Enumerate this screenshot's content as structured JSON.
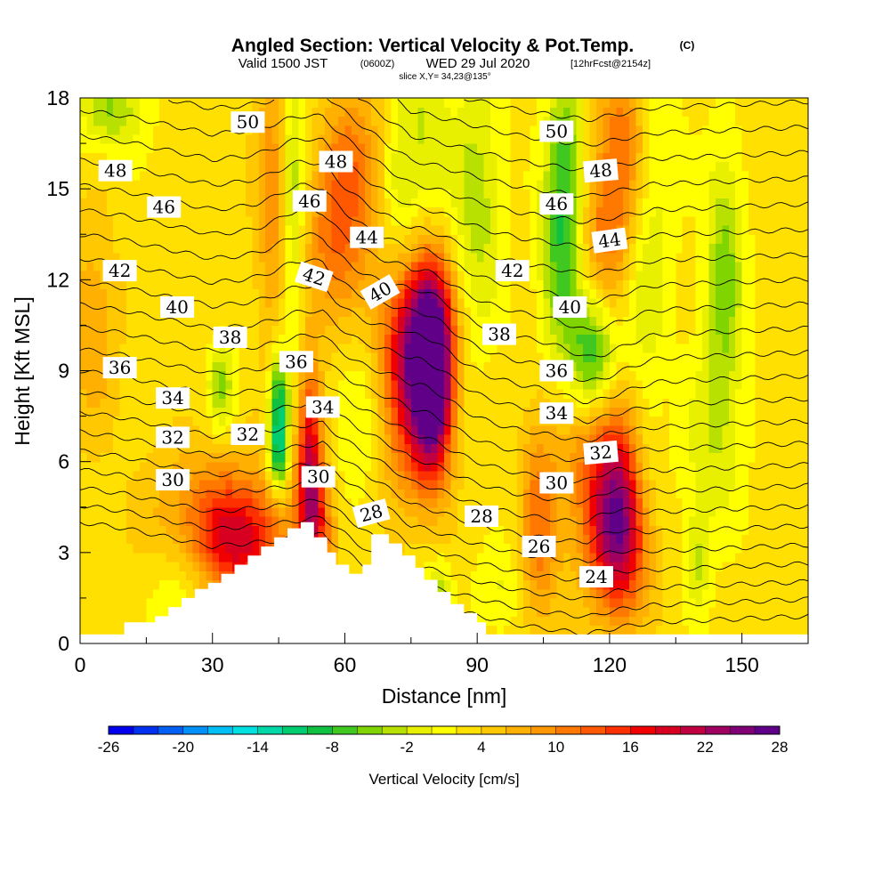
{
  "title": {
    "main": "Angled Section: Vertical Velocity & Pot.Temp.",
    "main_suffix": "(C)",
    "valid_prefix": "Valid 1500 JST",
    "valid_zulu": "(0600Z)",
    "valid_date": "WED 29 Jul 2020",
    "forecast": "[12hrFcst@2154z]",
    "slice": "slice X,Y= 34,23@135°"
  },
  "chart_data": {
    "type": "heatmap",
    "xlabel": "Distance [nm]",
    "ylabel": "Height [Kft MSL]",
    "xlim": [
      0,
      165
    ],
    "ylim": [
      0,
      18
    ],
    "x_ticks": [
      0,
      30,
      60,
      90,
      120,
      150
    ],
    "y_ticks": [
      0,
      3,
      6,
      9,
      12,
      15,
      18
    ],
    "x_tick_labels": [
      "0",
      "30",
      "60",
      "90",
      "120",
      "150"
    ],
    "y_tick_labels": [
      "0",
      "3",
      "6",
      "9",
      "12",
      "15",
      "18"
    ],
    "colorbar": {
      "label": "Vertical Velocity [cm/s]",
      "min": -26,
      "max": 28,
      "step": 2,
      "tick_values": [
        -26,
        -20,
        -14,
        -8,
        -2,
        4,
        10,
        16,
        22,
        28
      ],
      "tick_labels": [
        "-26",
        "-20",
        "-14",
        "-8",
        "-2",
        "4",
        "10",
        "16",
        "22",
        "28"
      ],
      "colors": [
        "#0000ee",
        "#0030f0",
        "#0060f4",
        "#0090f8",
        "#00bff5",
        "#00e0e0",
        "#00d8a8",
        "#00cc70",
        "#10c040",
        "#40c820",
        "#80d400",
        "#b8e000",
        "#e8f000",
        "#ffff00",
        "#ffe000",
        "#ffc800",
        "#ffb000",
        "#ff9800",
        "#ff7800",
        "#ff5800",
        "#ff3000",
        "#f00000",
        "#d80020",
        "#c00040",
        "#a00060",
        "#800078",
        "#600088"
      ]
    },
    "terrain": [
      [
        10,
        0.7
      ],
      [
        17,
        0.7
      ],
      [
        17,
        0.9
      ],
      [
        20,
        0.9
      ],
      [
        20,
        1.2
      ],
      [
        23,
        1.2
      ],
      [
        23,
        1.5
      ],
      [
        26,
        1.5
      ],
      [
        26,
        1.8
      ],
      [
        29,
        1.8
      ],
      [
        29,
        2.0
      ],
      [
        32,
        2.0
      ],
      [
        32,
        2.3
      ],
      [
        35,
        2.3
      ],
      [
        35,
        2.6
      ],
      [
        38,
        2.6
      ],
      [
        38,
        2.9
      ],
      [
        41,
        2.9
      ],
      [
        41,
        3.2
      ],
      [
        44,
        3.2
      ],
      [
        44,
        3.5
      ],
      [
        47,
        3.5
      ],
      [
        47,
        3.8
      ],
      [
        50,
        3.8
      ],
      [
        50,
        4.0
      ],
      [
        53,
        4.0
      ],
      [
        53,
        3.5
      ],
      [
        56,
        3.5
      ],
      [
        56,
        3.0
      ],
      [
        58,
        3.0
      ],
      [
        58,
        2.6
      ],
      [
        61,
        2.6
      ],
      [
        61,
        2.3
      ],
      [
        64,
        2.3
      ],
      [
        64,
        2.6
      ],
      [
        66,
        2.6
      ],
      [
        66,
        3.6
      ],
      [
        70,
        3.6
      ],
      [
        70,
        3.3
      ],
      [
        73,
        3.3
      ],
      [
        73,
        2.9
      ],
      [
        76,
        2.9
      ],
      [
        76,
        2.5
      ],
      [
        78,
        2.5
      ],
      [
        78,
        2.1
      ],
      [
        81,
        2.1
      ],
      [
        81,
        1.7
      ],
      [
        84,
        1.7
      ],
      [
        84,
        1.3
      ],
      [
        87,
        1.3
      ],
      [
        87,
        1.0
      ],
      [
        90,
        1.0
      ],
      [
        90,
        0.7
      ],
      [
        92,
        0.7
      ]
    ],
    "terrain_baseline_height": 0.3,
    "vv_features": [
      {
        "x": 80,
        "y": 8.8,
        "sx": 3,
        "sy": 2.2,
        "amp": 30
      },
      {
        "x": 76,
        "y": 10.3,
        "sx": 5,
        "sy": 2.0,
        "amp": 15
      },
      {
        "x": 74,
        "y": 8.0,
        "sx": 4,
        "sy": 2.5,
        "amp": 9
      },
      {
        "x": 52,
        "y": 6.0,
        "sx": 2,
        "sy": 2.2,
        "amp": 17
      },
      {
        "x": 54,
        "y": 3.8,
        "sx": 3,
        "sy": 1.4,
        "amp": 9
      },
      {
        "x": 37,
        "y": 3.3,
        "sx": 7,
        "sy": 1.4,
        "amp": 14
      },
      {
        "x": 28,
        "y": 4.5,
        "sx": 9,
        "sy": 1.5,
        "amp": 6
      },
      {
        "x": 122,
        "y": 4.4,
        "sx": 4,
        "sy": 2.2,
        "amp": 15
      },
      {
        "x": 117,
        "y": 5.7,
        "sx": 6,
        "sy": 2.5,
        "amp": 8
      },
      {
        "x": 104,
        "y": 4.0,
        "sx": 3,
        "sy": 2.5,
        "amp": 8
      },
      {
        "x": 123,
        "y": 3.0,
        "sx": 5,
        "sy": 1.5,
        "amp": 6
      },
      {
        "x": 123,
        "y": 16.5,
        "sx": 4,
        "sy": 2.0,
        "amp": 9
      },
      {
        "x": 119,
        "y": 13.2,
        "sx": 4,
        "sy": 2.0,
        "amp": 7
      },
      {
        "x": 58,
        "y": 13.0,
        "sx": 5,
        "sy": 2.0,
        "amp": 8
      },
      {
        "x": 62,
        "y": 16.0,
        "sx": 5,
        "sy": 2.0,
        "amp": 7
      },
      {
        "x": 44,
        "y": 14.8,
        "sx": 3,
        "sy": 3.5,
        "amp": 7
      },
      {
        "x": 3,
        "y": 10.5,
        "sx": 4,
        "sy": 2.5,
        "amp": 5
      },
      {
        "x": 116,
        "y": 9.5,
        "sx": 4,
        "sy": 1.5,
        "amp": -13
      },
      {
        "x": 110,
        "y": 15.5,
        "sx": 3,
        "sy": 2.5,
        "amp": -10
      },
      {
        "x": 108,
        "y": 12.0,
        "sx": 3,
        "sy": 2.0,
        "amp": -6
      },
      {
        "x": 48,
        "y": 14.5,
        "sx": 2,
        "sy": 3.5,
        "amp": -8
      },
      {
        "x": 45,
        "y": 7.8,
        "sx": 1.5,
        "sy": 1.2,
        "amp": -14
      },
      {
        "x": 45,
        "y": 6.0,
        "sx": 1.5,
        "sy": 0.8,
        "amp": -10
      },
      {
        "x": 7,
        "y": 17.7,
        "sx": 5,
        "sy": 1.0,
        "amp": -7
      },
      {
        "x": 32,
        "y": 8.5,
        "sx": 2,
        "sy": 1.0,
        "amp": -7
      },
      {
        "x": 72,
        "y": 14.0,
        "sx": 3,
        "sy": 3.0,
        "amp": -4
      },
      {
        "x": 90,
        "y": 14.5,
        "sx": 4,
        "sy": 3.0,
        "amp": -6
      },
      {
        "x": 78,
        "y": 16.5,
        "sx": 4,
        "sy": 2.5,
        "amp": -5
      },
      {
        "x": 146,
        "y": 12.0,
        "sx": 3,
        "sy": 3.0,
        "amp": -8
      },
      {
        "x": 130,
        "y": 16.0,
        "sx": 4,
        "sy": 2.0,
        "amp": -4
      },
      {
        "x": 143,
        "y": 6.5,
        "sx": 5,
        "sy": 2.0,
        "amp": -4
      },
      {
        "x": 128,
        "y": 6.5,
        "sx": 3,
        "sy": 2.0,
        "amp": -3
      },
      {
        "x": 128,
        "y": 11.5,
        "sx": 4,
        "sy": 2.0,
        "amp": -4
      },
      {
        "x": 95,
        "y": 1.7,
        "sx": 4,
        "sy": 1.0,
        "amp": -3
      },
      {
        "x": 81,
        "y": 1.8,
        "sx": 2,
        "sy": 0.7,
        "amp": -6
      },
      {
        "x": 140,
        "y": 2.7,
        "sx": 2,
        "sy": 1.2,
        "amp": -5
      },
      {
        "x": 62,
        "y": 7.5,
        "sx": 4,
        "sy": 2.0,
        "amp": -3
      },
      {
        "x": 23,
        "y": 1.7,
        "sx": 5,
        "sy": 1.0,
        "amp": -3
      }
    ],
    "isentrope_levels": [
      22,
      23,
      24,
      25,
      26,
      27,
      28,
      29,
      30,
      31,
      32,
      33,
      34,
      35,
      36,
      37,
      38,
      39,
      40,
      41,
      42,
      43,
      44,
      45,
      46,
      47,
      48,
      49,
      50,
      51,
      52
    ],
    "isentrope_base_height": [
      [
        0,
        4.0
      ],
      [
        10,
        3.8
      ],
      [
        30,
        3.2
      ],
      [
        45,
        3.4
      ],
      [
        55,
        3.6
      ],
      [
        75,
        1.4
      ],
      [
        100,
        0.6
      ],
      [
        115,
        0.3
      ],
      [
        130,
        0.7
      ],
      [
        165,
        0.9
      ]
    ],
    "isentrope_spacing": [
      [
        22,
        0.55
      ],
      [
        30,
        0.7
      ],
      [
        36,
        0.8
      ],
      [
        42,
        0.85
      ],
      [
        52,
        0.8
      ]
    ],
    "isentrope_bumps": [
      {
        "x": 77,
        "y": 9.5,
        "sx": 7,
        "sy": 3.0,
        "amp": 0.9
      },
      {
        "x": 117,
        "y": 9.4,
        "sx": 6,
        "sy": 1.6,
        "amp": -0.4
      },
      {
        "x": 50,
        "y": 14.0,
        "sx": 5,
        "sy": 3.0,
        "amp": 0.5
      },
      {
        "x": 121,
        "y": 4.5,
        "sx": 4,
        "sy": 2.0,
        "amp": 0.3
      }
    ],
    "isentrope_labels": [
      {
        "text": "50",
        "x": 38,
        "y": 17.2,
        "angle": 0
      },
      {
        "text": "50",
        "x": 108,
        "y": 16.9,
        "angle": 0
      },
      {
        "text": "48",
        "x": 8,
        "y": 15.6,
        "angle": 0
      },
      {
        "text": "48",
        "x": 58,
        "y": 15.9,
        "angle": 0
      },
      {
        "text": "48",
        "x": 118,
        "y": 15.6,
        "angle": -5
      },
      {
        "text": "46",
        "x": 19,
        "y": 14.4,
        "angle": 0
      },
      {
        "text": "46",
        "x": 52,
        "y": 14.6,
        "angle": 0
      },
      {
        "text": "46",
        "x": 108,
        "y": 14.5,
        "angle": 0
      },
      {
        "text": "44",
        "x": 65,
        "y": 13.4,
        "angle": 0
      },
      {
        "text": "44",
        "x": 120,
        "y": 13.3,
        "angle": -8
      },
      {
        "text": "42",
        "x": 9,
        "y": 12.3,
        "angle": 0
      },
      {
        "text": "42",
        "x": 53,
        "y": 12.1,
        "angle": 18
      },
      {
        "text": "42",
        "x": 98,
        "y": 12.3,
        "angle": 0
      },
      {
        "text": "40",
        "x": 22,
        "y": 11.1,
        "angle": 0
      },
      {
        "text": "40",
        "x": 68,
        "y": 11.6,
        "angle": -30
      },
      {
        "text": "40",
        "x": 111,
        "y": 11.1,
        "angle": 0
      },
      {
        "text": "38",
        "x": 34,
        "y": 10.1,
        "angle": 0
      },
      {
        "text": "38",
        "x": 95,
        "y": 10.2,
        "angle": 0
      },
      {
        "text": "36",
        "x": 9,
        "y": 9.1,
        "angle": 0
      },
      {
        "text": "36",
        "x": 49,
        "y": 9.3,
        "angle": 0
      },
      {
        "text": "36",
        "x": 108,
        "y": 9.0,
        "angle": 0
      },
      {
        "text": "34",
        "x": 21,
        "y": 8.1,
        "angle": 0
      },
      {
        "text": "34",
        "x": 55,
        "y": 7.8,
        "angle": 0
      },
      {
        "text": "34",
        "x": 108,
        "y": 7.6,
        "angle": 0
      },
      {
        "text": "32",
        "x": 21,
        "y": 6.8,
        "angle": 0
      },
      {
        "text": "32",
        "x": 38,
        "y": 6.9,
        "angle": 0
      },
      {
        "text": "32",
        "x": 118,
        "y": 6.3,
        "angle": -5
      },
      {
        "text": "30",
        "x": 21,
        "y": 5.4,
        "angle": 0
      },
      {
        "text": "30",
        "x": 54,
        "y": 5.5,
        "angle": 0
      },
      {
        "text": "30",
        "x": 108,
        "y": 5.3,
        "angle": 0
      },
      {
        "text": "28",
        "x": 66,
        "y": 4.3,
        "angle": -15
      },
      {
        "text": "28",
        "x": 91,
        "y": 4.2,
        "angle": 0
      },
      {
        "text": "26",
        "x": 104,
        "y": 3.2,
        "angle": 0
      },
      {
        "text": "24",
        "x": 117,
        "y": 2.2,
        "angle": 0
      }
    ]
  }
}
